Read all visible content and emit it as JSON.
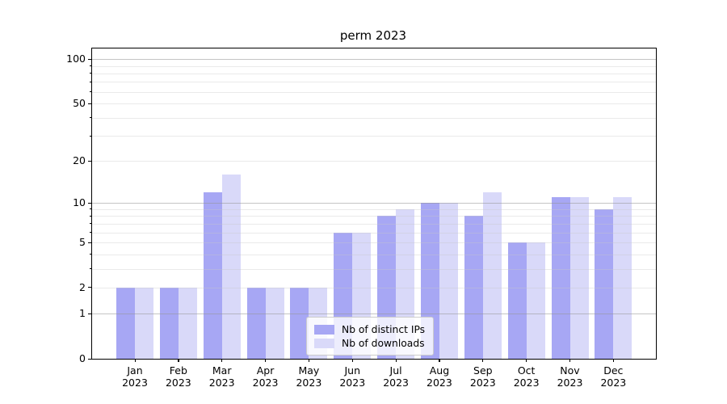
{
  "chart_data": {
    "type": "bar",
    "title": "perm 2023",
    "categories": [
      "Jan",
      "Feb",
      "Mar",
      "Apr",
      "May",
      "Jun",
      "Jul",
      "Aug",
      "Sep",
      "Oct",
      "Nov",
      "Dec"
    ],
    "category_year": "2023",
    "series": [
      {
        "name": "Nb of distinct IPs",
        "color": "#a7a7f4",
        "values": [
          2,
          2,
          12,
          2,
          2,
          6,
          8,
          10,
          8,
          5,
          11,
          9
        ]
      },
      {
        "name": "Nb of downloads",
        "color": "#d9d9f9",
        "values": [
          2,
          2,
          16,
          2,
          2,
          6,
          9,
          10,
          12,
          5,
          11,
          11
        ]
      }
    ],
    "xlabel": "",
    "ylabel": "",
    "yscale": "log1p",
    "ylim": [
      0,
      118
    ],
    "ytick_labels": [
      100,
      50,
      20,
      10,
      5,
      2,
      1,
      0
    ],
    "gridlines_major": [
      1,
      10,
      100
    ],
    "gridlines_minor": [
      2,
      3,
      4,
      5,
      6,
      7,
      8,
      9,
      20,
      30,
      40,
      50,
      60,
      70,
      80,
      90
    ],
    "grid": true,
    "legend_position": "lower center",
    "colors": {
      "grid_major": "#bdbdbd",
      "grid_minor": "#e9e9e9",
      "axis": "#000000",
      "background": "#ffffff",
      "text": "#000000"
    }
  }
}
